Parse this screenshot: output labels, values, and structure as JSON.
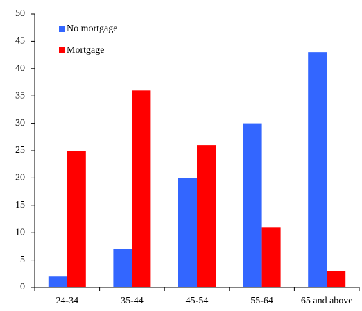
{
  "chart_data": {
    "type": "bar",
    "categories": [
      "24-34",
      "35-44",
      "45-54",
      "55-64",
      "65 and above"
    ],
    "series": [
      {
        "name": "No mortgage",
        "color": "#3366ff",
        "values": [
          2,
          7,
          20,
          30,
          43
        ]
      },
      {
        "name": "Mortgage",
        "color": "#ff0000",
        "values": [
          25,
          36,
          26,
          11,
          3
        ]
      }
    ],
    "ylim": [
      0,
      50
    ],
    "yticks": [
      0,
      5,
      10,
      15,
      20,
      25,
      30,
      35,
      40,
      45,
      50
    ],
    "grid": false,
    "legend": "top-left"
  }
}
